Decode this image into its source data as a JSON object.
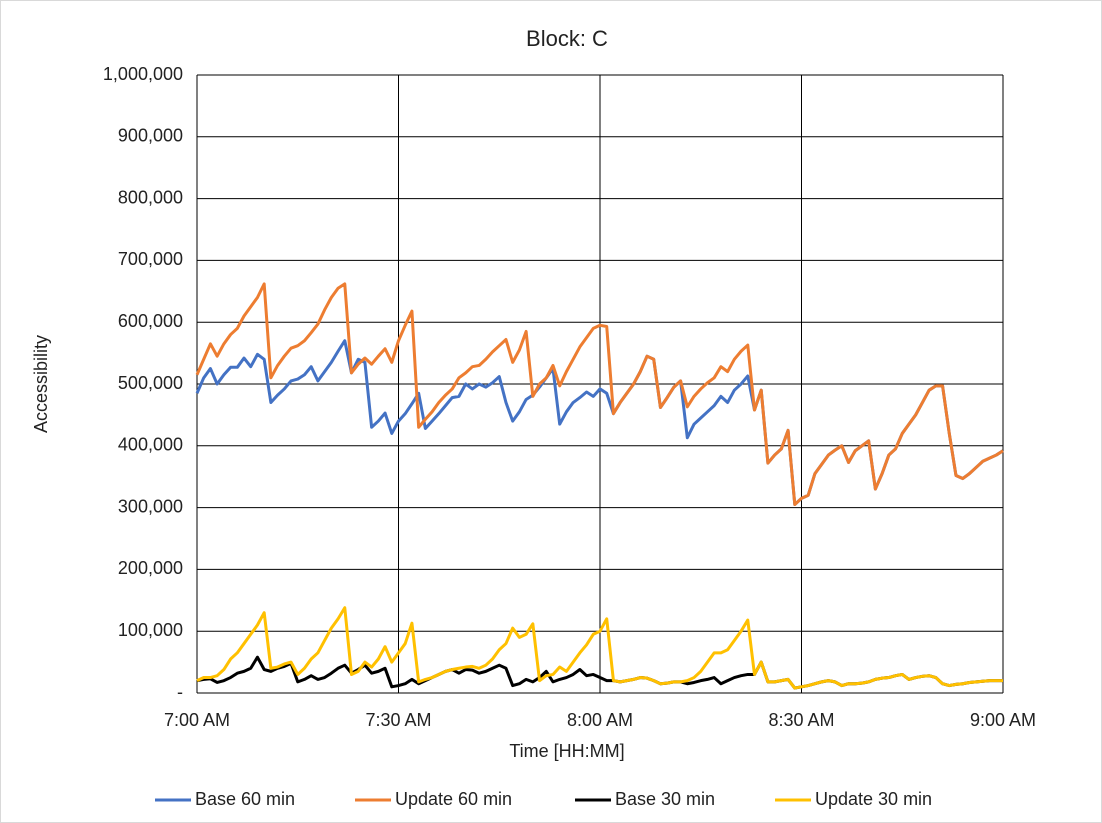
{
  "chart_data": {
    "type": "line",
    "title": "Block: C",
    "x_label": "Time [HH:MM]",
    "y_label": "Accessibility",
    "categories": [
      "7:00 AM",
      null,
      null,
      null,
      null,
      null,
      null,
      null,
      null,
      null,
      null,
      null,
      null,
      null,
      null,
      null,
      null,
      null,
      null,
      null,
      null,
      null,
      null,
      null,
      null,
      null,
      null,
      null,
      null,
      null,
      "7:30 AM",
      null,
      null,
      null,
      null,
      null,
      null,
      null,
      null,
      null,
      null,
      null,
      null,
      null,
      null,
      null,
      null,
      null,
      null,
      null,
      null,
      null,
      null,
      null,
      null,
      null,
      null,
      null,
      null,
      null,
      "8:00 AM",
      null,
      null,
      null,
      null,
      null,
      null,
      null,
      null,
      null,
      null,
      null,
      null,
      null,
      null,
      null,
      null,
      null,
      null,
      null,
      null,
      null,
      null,
      null,
      null,
      null,
      null,
      null,
      null,
      null,
      "8:30 AM",
      null,
      null,
      null,
      null,
      null,
      null,
      null,
      null,
      null,
      null,
      null,
      null,
      null,
      null,
      null,
      null,
      null,
      null,
      null,
      null,
      null,
      null,
      null,
      null,
      null,
      null,
      null,
      null,
      null,
      "9:00 AM"
    ],
    "series": [
      {
        "name": "Base 60 min",
        "color": "#4472c4",
        "values": [
          485000,
          510000,
          525000,
          500000,
          515000,
          527000,
          527000,
          542000,
          528000,
          548000,
          540000,
          470000,
          482000,
          492000,
          505000,
          508000,
          515000,
          528000,
          505000,
          520000,
          535000,
          553000,
          570000,
          518000,
          540000,
          535000,
          430000,
          440000,
          453000,
          420000,
          440000,
          452000,
          468000,
          485000,
          428000,
          440000,
          452000,
          465000,
          478000,
          480000,
          500000,
          492000,
          500000,
          495000,
          502000,
          512000,
          470000,
          440000,
          455000,
          475000,
          482000,
          495000,
          510000,
          525000,
          435000,
          455000,
          470000,
          478000,
          487000,
          480000,
          492000,
          485000,
          452000,
          470000,
          485000,
          500000,
          520000,
          545000,
          540000,
          462000,
          478000,
          495000,
          505000,
          413000,
          435000,
          445000,
          455000,
          465000,
          480000,
          470000,
          490000,
          500000,
          513000,
          458000,
          490000,
          372000,
          385000,
          395000,
          425000,
          305000,
          315000,
          320000,
          355000,
          370000,
          385000,
          393000,
          400000,
          373000,
          392000,
          400000,
          408000,
          330000,
          355000,
          385000,
          395000,
          420000,
          435000,
          450000,
          470000,
          490000,
          497000,
          497000,
          420000,
          352000,
          347000,
          355000,
          365000,
          375000,
          380000,
          385000,
          392000
        ]
      },
      {
        "name": "Update 60 min",
        "color": "#ed7d31",
        "values": [
          515000,
          540000,
          565000,
          545000,
          565000,
          580000,
          590000,
          610000,
          625000,
          640000,
          662000,
          510000,
          530000,
          545000,
          558000,
          562000,
          570000,
          583000,
          597000,
          620000,
          640000,
          655000,
          662000,
          518000,
          532000,
          542000,
          532000,
          545000,
          557000,
          535000,
          570000,
          595000,
          618000,
          430000,
          443000,
          455000,
          470000,
          482000,
          492000,
          510000,
          518000,
          528000,
          530000,
          540000,
          552000,
          562000,
          572000,
          535000,
          555000,
          585000,
          480000,
          500000,
          510000,
          530000,
          497000,
          520000,
          540000,
          560000,
          575000,
          590000,
          595000,
          593000,
          452000,
          470000,
          485000,
          500000,
          520000,
          545000,
          540000,
          462000,
          478000,
          495000,
          505000,
          463000,
          480000,
          492000,
          502000,
          510000,
          528000,
          520000,
          540000,
          553000,
          563000,
          458000,
          490000,
          372000,
          385000,
          395000,
          425000,
          305000,
          315000,
          320000,
          355000,
          370000,
          385000,
          393000,
          400000,
          373000,
          392000,
          400000,
          408000,
          330000,
          355000,
          385000,
          395000,
          420000,
          435000,
          450000,
          470000,
          490000,
          497000,
          497000,
          420000,
          352000,
          347000,
          355000,
          365000,
          375000,
          380000,
          385000,
          392000
        ]
      },
      {
        "name": "Base 30 min",
        "color": "#000000",
        "values": [
          20000,
          22000,
          23000,
          17000,
          20000,
          25000,
          32000,
          35000,
          40000,
          58000,
          38000,
          35000,
          40000,
          43000,
          48000,
          18000,
          22000,
          28000,
          22000,
          25000,
          32000,
          40000,
          45000,
          32000,
          38000,
          45000,
          32000,
          35000,
          40000,
          10000,
          12000,
          15000,
          22000,
          15000,
          20000,
          25000,
          30000,
          35000,
          38000,
          32000,
          38000,
          37000,
          32000,
          35000,
          40000,
          45000,
          40000,
          12000,
          15000,
          22000,
          18000,
          25000,
          35000,
          18000,
          22000,
          25000,
          30000,
          38000,
          28000,
          30000,
          25000,
          20000,
          20000,
          18000,
          20000,
          22000,
          25000,
          24000,
          20000,
          15000,
          16000,
          18000,
          18000,
          15000,
          17000,
          20000,
          22000,
          25000,
          15000,
          20000,
          25000,
          28000,
          30000,
          30000,
          50000,
          18000,
          18000,
          20000,
          22000,
          8000,
          10000,
          12000,
          15000,
          18000,
          20000,
          18000,
          12000,
          15000,
          15000,
          16000,
          18000,
          22000,
          24000,
          25000,
          28000,
          30000,
          22000,
          25000,
          27000,
          28000,
          25000,
          15000,
          12000,
          14000,
          15000,
          17000,
          18000,
          19000,
          20000,
          20000,
          20000
        ]
      },
      {
        "name": "Update 30 min",
        "color": "#ffc000",
        "values": [
          20000,
          25000,
          25000,
          28000,
          38000,
          55000,
          65000,
          80000,
          95000,
          110000,
          130000,
          40000,
          42000,
          47000,
          50000,
          30000,
          40000,
          55000,
          65000,
          85000,
          105000,
          120000,
          138000,
          30000,
          35000,
          50000,
          42000,
          55000,
          75000,
          50000,
          65000,
          80000,
          113000,
          18000,
          22000,
          25000,
          30000,
          35000,
          38000,
          40000,
          42000,
          43000,
          40000,
          45000,
          55000,
          70000,
          80000,
          105000,
          90000,
          95000,
          112000,
          20000,
          28000,
          30000,
          42000,
          35000,
          50000,
          65000,
          78000,
          95000,
          100000,
          120000,
          20000,
          18000,
          20000,
          22000,
          25000,
          24000,
          20000,
          15000,
          16000,
          18000,
          18000,
          20000,
          25000,
          35000,
          50000,
          65000,
          65000,
          70000,
          85000,
          100000,
          118000,
          30000,
          50000,
          18000,
          18000,
          20000,
          22000,
          8000,
          10000,
          12000,
          15000,
          18000,
          20000,
          18000,
          12000,
          15000,
          15000,
          16000,
          18000,
          22000,
          24000,
          25000,
          28000,
          30000,
          22000,
          25000,
          27000,
          28000,
          25000,
          15000,
          12000,
          14000,
          15000,
          17000,
          18000,
          19000,
          20000,
          20000,
          20000
        ]
      }
    ],
    "ylim": [
      0,
      1000000
    ],
    "yticks": [
      {
        "value": 0,
        "label": "-"
      },
      {
        "value": 100000,
        "label": "100,000"
      },
      {
        "value": 200000,
        "label": "200,000"
      },
      {
        "value": 300000,
        "label": "300,000"
      },
      {
        "value": 400000,
        "label": "400,000"
      },
      {
        "value": 500000,
        "label": "500,000"
      },
      {
        "value": 600000,
        "label": "600,000"
      },
      {
        "value": 700000,
        "label": "700,000"
      },
      {
        "value": 800000,
        "label": "800,000"
      },
      {
        "value": 900000,
        "label": "900,000"
      },
      {
        "value": 1000000,
        "label": "1,000,000"
      }
    ],
    "grid": true,
    "legend": "bottom"
  }
}
